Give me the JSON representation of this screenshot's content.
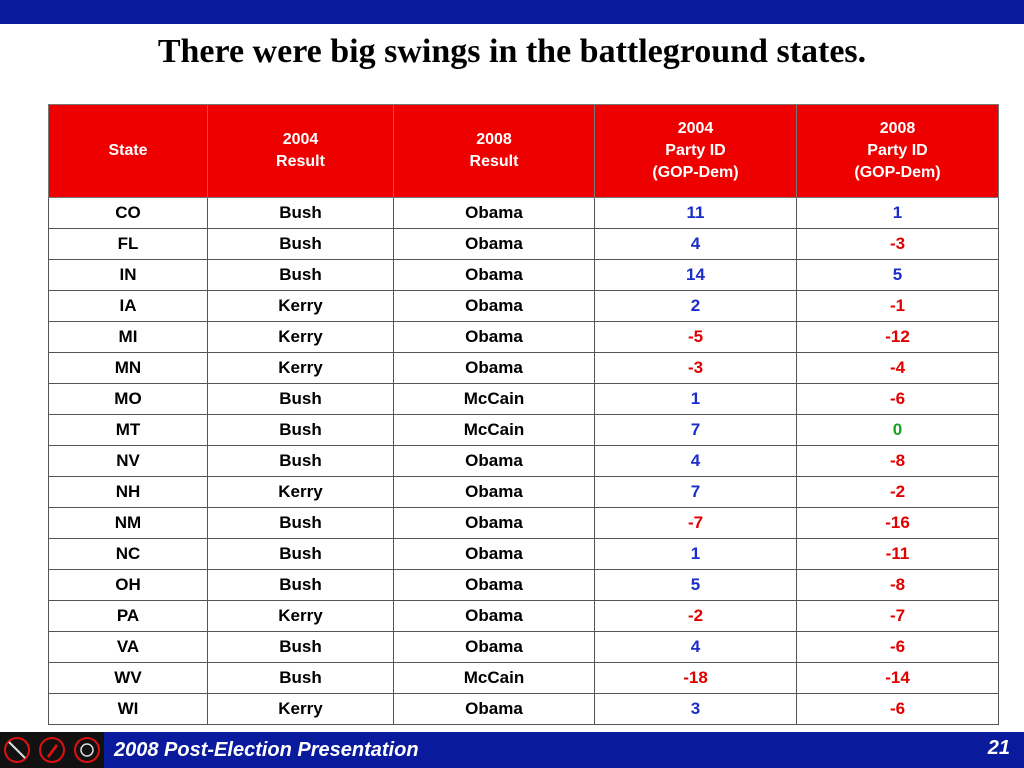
{
  "slide": {
    "title": "There were big swings in the battleground states.",
    "footer_text": "2008 Post-Election Presentation",
    "page_number": "21"
  },
  "table": {
    "headers": [
      {
        "lines": [
          "State"
        ]
      },
      {
        "lines": [
          "2004",
          "Result"
        ]
      },
      {
        "lines": [
          "2008",
          "Result"
        ]
      },
      {
        "lines": [
          "2004",
          "Party ID",
          "(GOP-Dem)"
        ]
      },
      {
        "lines": [
          "2008",
          "Party ID",
          "(GOP-Dem)"
        ]
      }
    ],
    "rows": [
      {
        "state": "CO",
        "r2004": "Bush",
        "r2008": "Obama",
        "pid2004": "11",
        "pid2008": "1"
      },
      {
        "state": "FL",
        "r2004": "Bush",
        "r2008": "Obama",
        "pid2004": "4",
        "pid2008": "-3"
      },
      {
        "state": "IN",
        "r2004": "Bush",
        "r2008": "Obama",
        "pid2004": "14",
        "pid2008": "5"
      },
      {
        "state": "IA",
        "r2004": "Kerry",
        "r2008": "Obama",
        "pid2004": "2",
        "pid2008": "-1"
      },
      {
        "state": "MI",
        "r2004": "Kerry",
        "r2008": "Obama",
        "pid2004": "-5",
        "pid2008": "-12"
      },
      {
        "state": "MN",
        "r2004": "Kerry",
        "r2008": "Obama",
        "pid2004": "-3",
        "pid2008": "-4"
      },
      {
        "state": "MO",
        "r2004": "Bush",
        "r2008": "McCain",
        "pid2004": "1",
        "pid2008": "-6"
      },
      {
        "state": "MT",
        "r2004": "Bush",
        "r2008": "McCain",
        "pid2004": "7",
        "pid2008": "0"
      },
      {
        "state": "NV",
        "r2004": "Bush",
        "r2008": "Obama",
        "pid2004": "4",
        "pid2008": "-8"
      },
      {
        "state": "NH",
        "r2004": "Kerry",
        "r2008": "Obama",
        "pid2004": "7",
        "pid2008": "-2"
      },
      {
        "state": "NM",
        "r2004": "Bush",
        "r2008": "Obama",
        "pid2004": "-7",
        "pid2008": "-16"
      },
      {
        "state": "NC",
        "r2004": "Bush",
        "r2008": "Obama",
        "pid2004": "1",
        "pid2008": "-11"
      },
      {
        "state": "OH",
        "r2004": "Bush",
        "r2008": "Obama",
        "pid2004": "5",
        "pid2008": "-8"
      },
      {
        "state": "PA",
        "r2004": "Kerry",
        "r2008": "Obama",
        "pid2004": "-2",
        "pid2008": "-7"
      },
      {
        "state": "VA",
        "r2004": "Bush",
        "r2008": "Obama",
        "pid2004": "4",
        "pid2008": "-6"
      },
      {
        "state": "WV",
        "r2004": "Bush",
        "r2008": "McCain",
        "pid2004": "-18",
        "pid2008": "-14"
      },
      {
        "state": "WI",
        "r2004": "Kerry",
        "r2008": "Obama",
        "pid2004": "3",
        "pid2008": "-6"
      }
    ]
  },
  "colors": {
    "banner_blue": "#0a1a9c",
    "header_red": "#ee0000",
    "positive_blue": "#1a2fc8",
    "negative_red": "#e00000",
    "zero_green": "#1aa020"
  },
  "icons": [
    "slash-circle-icon",
    "pen-circle-icon",
    "ring-circle-icon"
  ]
}
